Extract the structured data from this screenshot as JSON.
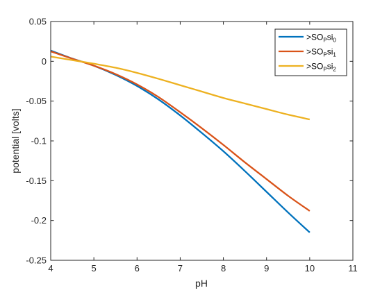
{
  "chart_data": {
    "type": "line",
    "title": "",
    "xlabel": "pH",
    "ylabel": "potential [volts]",
    "xlim": [
      4,
      11
    ],
    "ylim": [
      -0.25,
      0.05
    ],
    "xticks": [
      4,
      5,
      6,
      7,
      8,
      9,
      10,
      11
    ],
    "xtick_labels": [
      "4",
      "5",
      "6",
      "7",
      "8",
      "9",
      "10",
      "11"
    ],
    "yticks": [
      0.05,
      0,
      -0.05,
      -0.1,
      -0.15,
      -0.2,
      -0.25
    ],
    "ytick_labels": [
      "0.05",
      "0",
      "-0.05",
      "-0.1",
      "-0.15",
      "-0.2",
      "-0.25"
    ],
    "grid": false,
    "legend_position": "top-right",
    "x": [
      4,
      4.5,
      5,
      5.5,
      6,
      6.5,
      7,
      7.5,
      8,
      8.5,
      9,
      9.5,
      10
    ],
    "series": [
      {
        "name": ">SO",
        "name_sub1": "P",
        "name_mid": "si",
        "name_sub2": "0",
        "color": "#0072BD",
        "values": [
          0.0135,
          0.0035,
          -0.0055,
          -0.017,
          -0.031,
          -0.048,
          -0.068,
          -0.09,
          -0.113,
          -0.138,
          -0.164,
          -0.19,
          -0.215
        ]
      },
      {
        "name": ">SO",
        "name_sub1": "P",
        "name_mid": "si",
        "name_sub2": "1",
        "color": "#D95319",
        "values": [
          0.0125,
          0.0033,
          -0.0055,
          -0.016,
          -0.029,
          -0.045,
          -0.064,
          -0.084,
          -0.105,
          -0.127,
          -0.148,
          -0.169,
          -0.188
        ]
      },
      {
        "name": ">SO",
        "name_sub1": "P",
        "name_mid": "si",
        "name_sub2": "2",
        "color": "#EDB120",
        "values": [
          0.006,
          0.0015,
          -0.003,
          -0.008,
          -0.0145,
          -0.022,
          -0.03,
          -0.038,
          -0.046,
          -0.053,
          -0.06,
          -0.067,
          -0.073
        ]
      }
    ]
  }
}
